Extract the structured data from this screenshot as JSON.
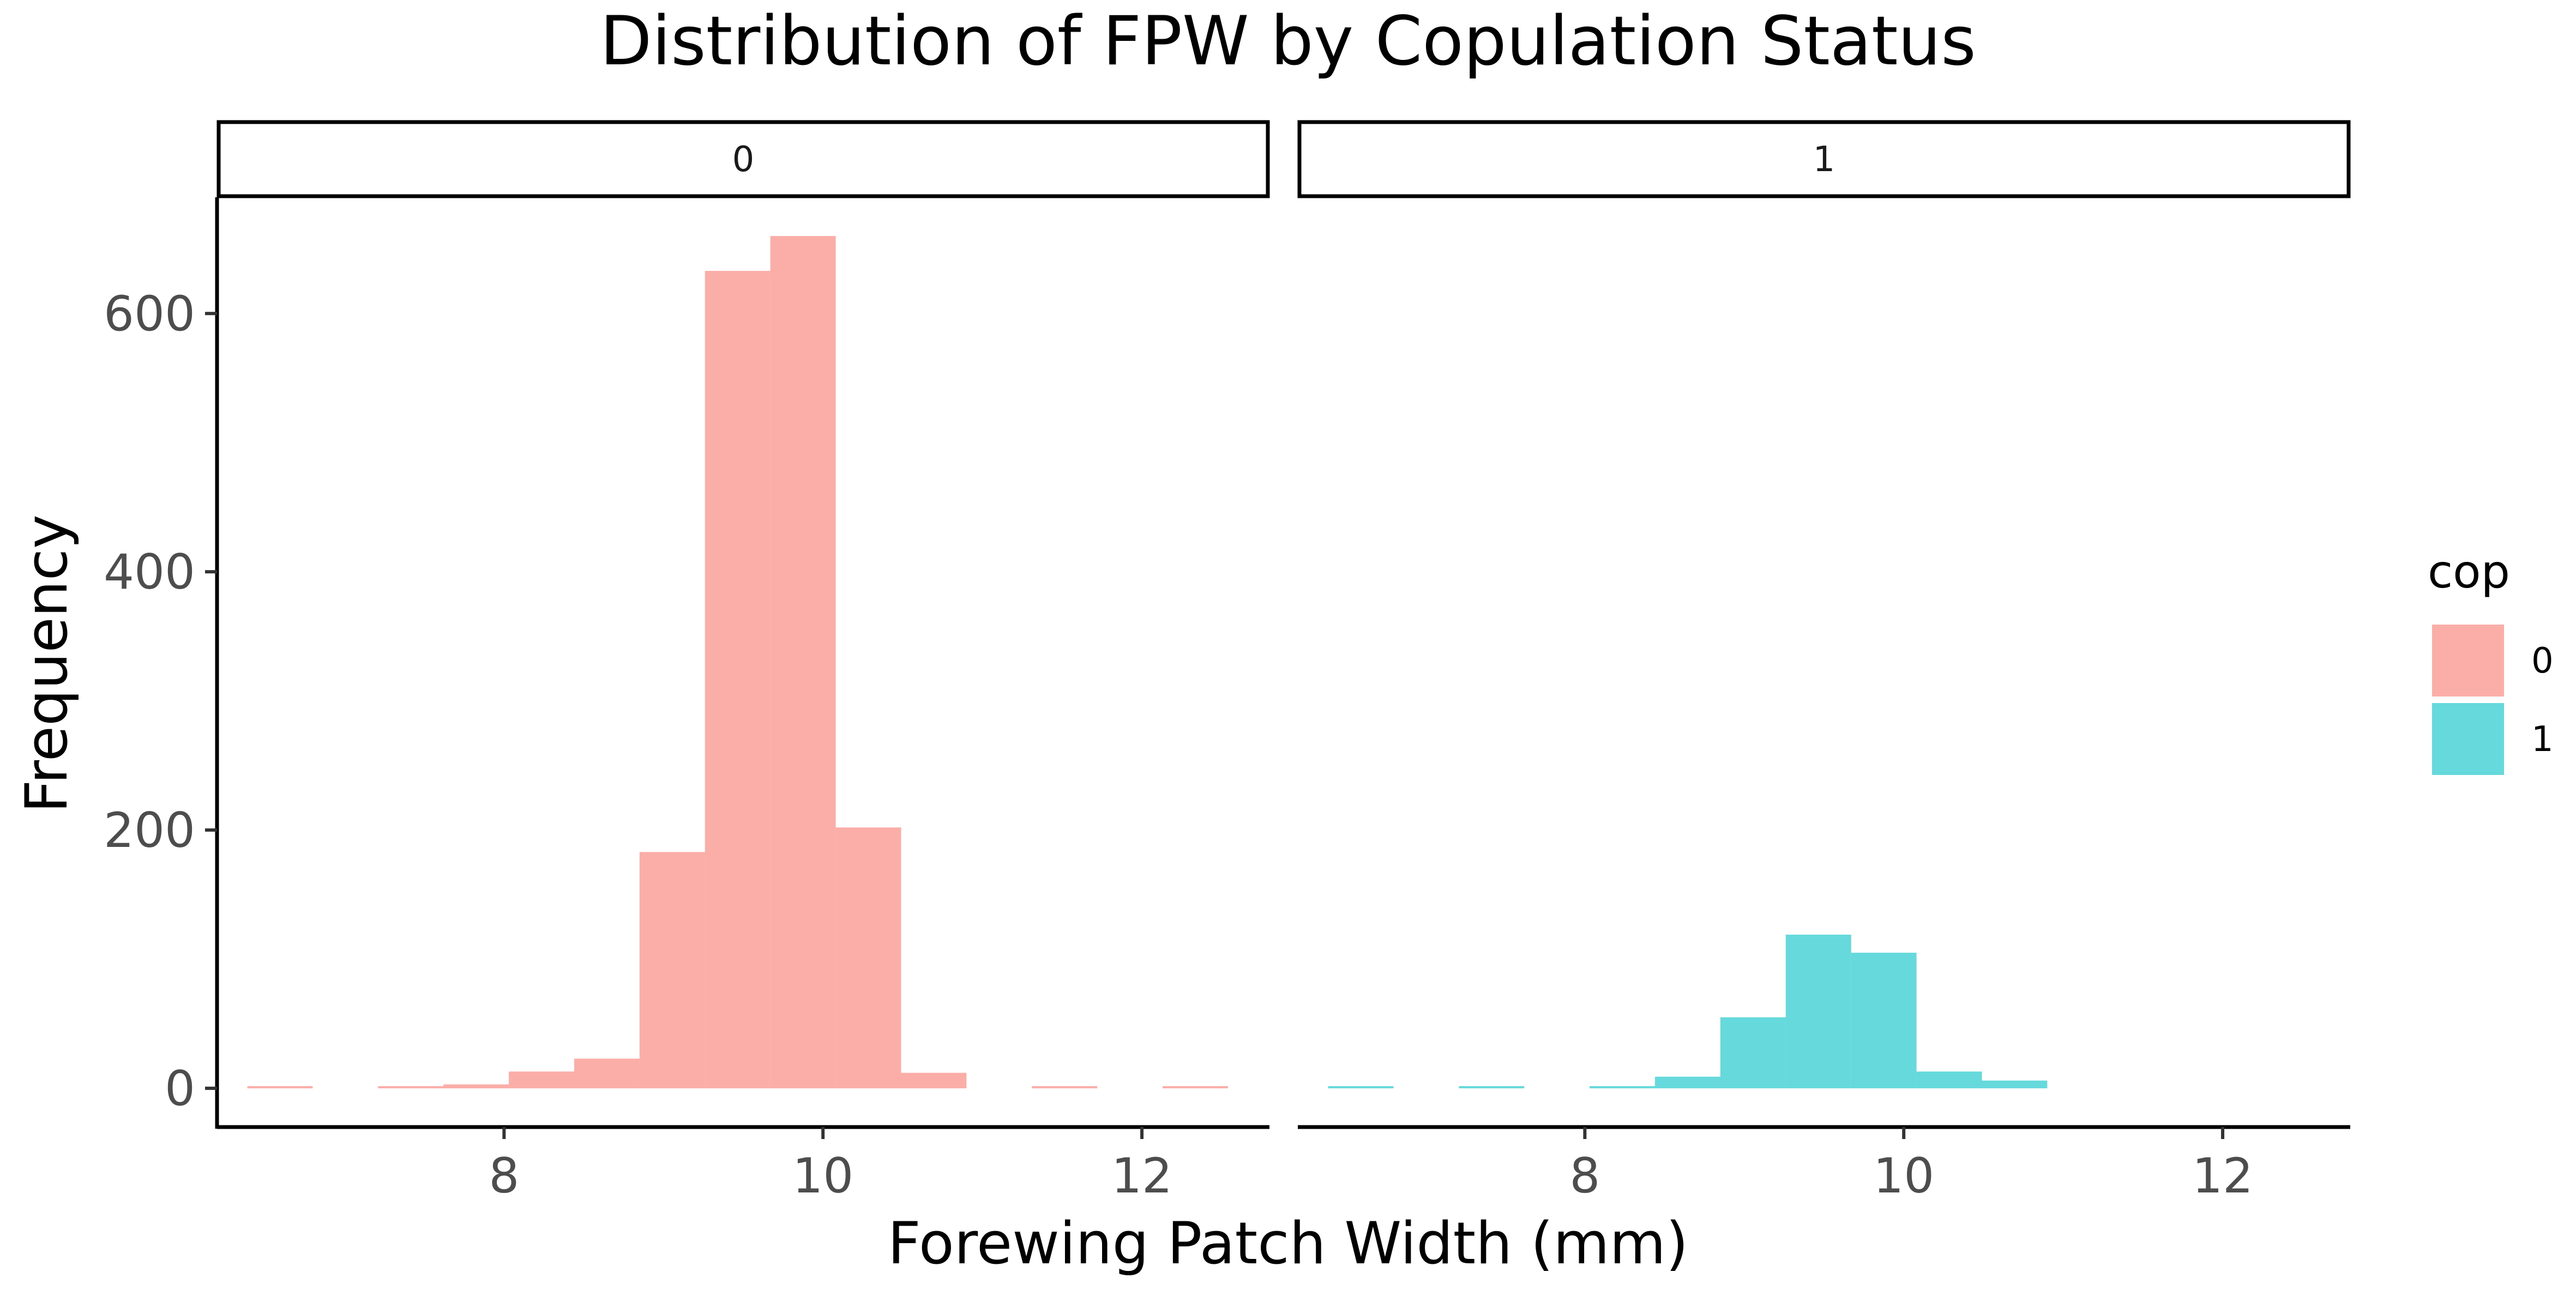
{
  "chart_data": {
    "type": "bar",
    "title": "Distribution of FPW by Copulation Status",
    "xlabel": "Forewing Patch Width (mm)",
    "ylabel": "Frequency",
    "xlim": [
      6.2,
      12.8
    ],
    "ylim": [
      -30,
      690
    ],
    "xticks": [
      8,
      10,
      12
    ],
    "yticks": [
      0,
      200,
      400,
      600
    ],
    "grid": false,
    "bin_width": 0.41,
    "legend": {
      "title": "cop",
      "position": "right",
      "entries": [
        {
          "label": "0",
          "color": "#F8766D"
        },
        {
          "label": "1",
          "color": "#00BFC4"
        }
      ]
    },
    "panels": [
      {
        "strip_label": "0",
        "series_name": "0",
        "color": "#F8766D",
        "bins_start": [
          6.39,
          6.8,
          7.21,
          7.62,
          8.03,
          8.44,
          8.85,
          9.26,
          9.67,
          10.08,
          10.49,
          10.9,
          11.31,
          11.72,
          12.13
        ],
        "counts": [
          1,
          0,
          1,
          3,
          13,
          23,
          183,
          633,
          660,
          202,
          12,
          0,
          1,
          0,
          1
        ]
      },
      {
        "strip_label": "1",
        "series_name": "1",
        "color": "#00BFC4",
        "bins_start": [
          6.39,
          6.8,
          7.21,
          7.62,
          8.03,
          8.44,
          8.85,
          9.26,
          9.67,
          10.08,
          10.49
        ],
        "counts": [
          1,
          0,
          1,
          0,
          1,
          9,
          55,
          119,
          105,
          13,
          6
        ]
      }
    ]
  }
}
